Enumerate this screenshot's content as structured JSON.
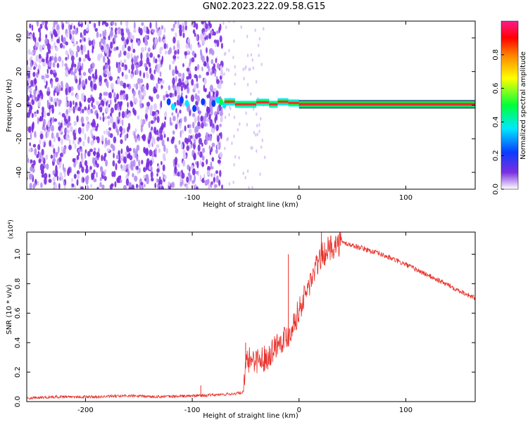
{
  "figure": {
    "title": "GN02.2023.222.09.58.G15"
  },
  "chart_data": [
    {
      "type": "heatmap",
      "xlabel": "Height of straight line (km)",
      "ylabel": "Frequency (Hz)",
      "xlim": [
        -255,
        165
      ],
      "ylim": [
        -50,
        50
      ],
      "xticks": [
        -200,
        -100,
        0,
        100
      ],
      "yticks": [
        -40,
        -20,
        0,
        20,
        40
      ],
      "colorbar": {
        "label": "Normalized spectral amplitude",
        "range": [
          0.0,
          1.0
        ],
        "ticks": [
          "0.0",
          "0.2",
          "0.4",
          "0.6",
          "0.8"
        ],
        "colormap": [
          "#ffffff",
          "#7b2fe0",
          "#0a3cff",
          "#00e8ff",
          "#00ff3a",
          "#ffff00",
          "#ff8000",
          "#ff0000",
          "#ff1a8c"
        ]
      },
      "features": {
        "noise_region_x": [
          -255,
          -72
        ],
        "transition_region_x": [
          -72,
          0
        ],
        "coherent_line_x": [
          0,
          165
        ],
        "line_frequency_hz": 0.5,
        "line_amplitude": 0.8
      },
      "grid": false
    },
    {
      "type": "line",
      "xlabel": "Height of straight line (km)",
      "ylabel": "SNR (10 * v/v)",
      "multiplier": "(x10⁴)",
      "xlim": [
        -255,
        165
      ],
      "ylim": [
        0,
        1.15
      ],
      "xticks": [
        -200,
        -100,
        0,
        100
      ],
      "yticks": [
        "0.0",
        "0.2",
        "0.4",
        "0.6",
        "0.8",
        "1.0"
      ],
      "line_color": "#e8302a",
      "x": [
        -255,
        -240,
        -220,
        -200,
        -180,
        -160,
        -140,
        -120,
        -100,
        -80,
        -60,
        -52,
        -50,
        -45,
        -40,
        -30,
        -20,
        -10,
        0,
        10,
        20,
        30,
        40,
        50,
        60,
        80,
        100,
        120,
        140,
        165
      ],
      "y": [
        0.02,
        0.025,
        0.03,
        0.028,
        0.03,
        0.035,
        0.03,
        0.03,
        0.035,
        0.04,
        0.05,
        0.06,
        0.24,
        0.3,
        0.28,
        0.3,
        0.4,
        0.45,
        0.62,
        0.8,
        0.98,
        1.05,
        1.08,
        1.06,
        1.04,
        0.99,
        0.93,
        0.86,
        0.79,
        0.7
      ],
      "spikes": [
        {
          "x": -92,
          "y": 0.11
        },
        {
          "x": -50,
          "y": 0.4
        },
        {
          "x": -10,
          "y": 1.0
        },
        {
          "x": 21,
          "y": 1.15
        }
      ],
      "grid": false
    }
  ]
}
